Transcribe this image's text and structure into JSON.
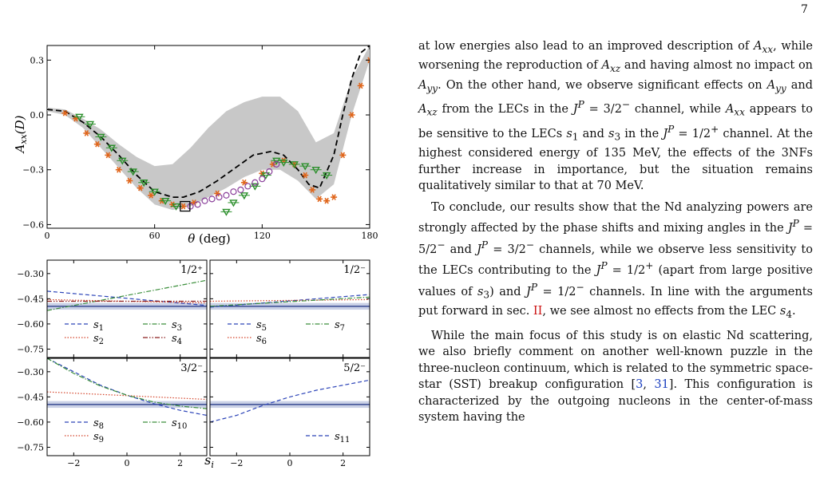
{
  "page_number": "7",
  "chart_data": [
    {
      "type": "line",
      "panel": "main",
      "xlabel": "θ (deg)",
      "ylabel": "Axx(D)",
      "xlim": [
        0,
        180
      ],
      "ylim": [
        -0.62,
        0.38
      ],
      "xticks": [
        0,
        60,
        120,
        180
      ],
      "yticks": [
        -0.6,
        -0.3,
        0.0,
        0.3
      ],
      "series": [
        {
          "style": "dashed black",
          "x": [
            0,
            10,
            20,
            30,
            40,
            50,
            60,
            70,
            76,
            85,
            95,
            105,
            115,
            125,
            132,
            140,
            146,
            152,
            160,
            165,
            170,
            175,
            180
          ],
          "y": [
            0.03,
            0.02,
            -0.04,
            -0.12,
            -0.22,
            -0.33,
            -0.42,
            -0.45,
            -0.45,
            -0.42,
            -0.36,
            -0.29,
            -0.22,
            -0.2,
            -0.22,
            -0.3,
            -0.38,
            -0.4,
            -0.22,
            0.0,
            0.2,
            0.34,
            0.38
          ]
        },
        {
          "style": "gray band",
          "x": [
            0,
            10,
            20,
            30,
            40,
            50,
            60,
            70,
            80,
            90,
            100,
            110,
            120,
            130,
            140,
            150,
            160,
            170,
            180
          ],
          "upper": [
            0.04,
            0.03,
            -0.02,
            -0.08,
            -0.16,
            -0.23,
            -0.28,
            -0.27,
            -0.18,
            -0.07,
            0.02,
            0.07,
            0.1,
            0.1,
            0.02,
            -0.15,
            -0.1,
            0.2,
            0.38
          ],
          "lower": [
            0.02,
            0.0,
            -0.07,
            -0.18,
            -0.29,
            -0.4,
            -0.49,
            -0.52,
            -0.5,
            -0.45,
            -0.4,
            -0.34,
            -0.3,
            -0.3,
            -0.36,
            -0.46,
            -0.38,
            0.0,
            0.3
          ]
        },
        {
          "style": "orange asterisk",
          "x": [
            10,
            16,
            22,
            28,
            34,
            40,
            46,
            52,
            58,
            64,
            70,
            76,
            82,
            95,
            110,
            120,
            126,
            132,
            138,
            144,
            148,
            152,
            156,
            160,
            165,
            170,
            175,
            180
          ],
          "y": [
            0.01,
            -0.02,
            -0.1,
            -0.16,
            -0.22,
            -0.3,
            -0.36,
            -0.4,
            -0.44,
            -0.47,
            -0.49,
            -0.5,
            -0.48,
            -0.43,
            -0.37,
            -0.32,
            -0.27,
            -0.25,
            -0.27,
            -0.33,
            -0.41,
            -0.46,
            -0.47,
            -0.45,
            -0.22,
            0.0,
            0.16,
            0.3
          ]
        },
        {
          "style": "green triangle",
          "x": [
            18,
            24,
            30,
            36,
            42,
            48,
            54,
            60,
            66,
            72,
            100,
            104,
            110,
            116,
            122,
            128,
            132,
            138,
            144,
            150,
            156
          ],
          "y": [
            -0.01,
            -0.05,
            -0.12,
            -0.18,
            -0.25,
            -0.31,
            -0.37,
            -0.42,
            -0.47,
            -0.5,
            -0.53,
            -0.48,
            -0.44,
            -0.39,
            -0.33,
            -0.25,
            -0.26,
            -0.27,
            -0.28,
            -0.3,
            -0.33
          ]
        },
        {
          "style": "purple circle",
          "x": [
            80,
            84,
            88,
            92,
            96,
            100,
            104,
            108,
            112,
            116,
            120,
            124,
            128
          ],
          "y": [
            -0.5,
            -0.49,
            -0.47,
            -0.46,
            -0.45,
            -0.44,
            -0.42,
            -0.41,
            -0.39,
            -0.37,
            -0.35,
            -0.31,
            -0.27
          ]
        },
        {
          "style": "black open square",
          "x": [
            77
          ],
          "y": [
            -0.5
          ]
        }
      ]
    },
    {
      "type": "line",
      "panel": "1/2+",
      "label": "1/2⁺",
      "xlim": [
        -3,
        3
      ],
      "ylim": [
        -0.8,
        -0.22
      ],
      "yticks": [
        -0.3,
        -0.45,
        -0.6,
        -0.75
      ],
      "band": [
        -0.515,
        -0.475
      ],
      "series": [
        {
          "name": "s1",
          "style": "dashed blue",
          "x": [
            -3,
            3
          ],
          "y": [
            -0.405,
            -0.49
          ]
        },
        {
          "name": "s2",
          "style": "dotted red",
          "x": [
            -3,
            3
          ],
          "y": [
            -0.455,
            -0.475
          ]
        },
        {
          "name": "s3",
          "style": "dash-dot green",
          "x": [
            -3,
            3
          ],
          "y": [
            -0.52,
            -0.34
          ]
        },
        {
          "name": "s4",
          "style": "dash-dot-dot red",
          "x": [
            -3,
            3
          ],
          "y": [
            -0.465,
            -0.465
          ]
        }
      ]
    },
    {
      "type": "line",
      "panel": "1/2-",
      "label": "1/2⁻",
      "xlim": [
        -3,
        3
      ],
      "ylim": [
        -0.8,
        -0.22
      ],
      "band": [
        -0.515,
        -0.475
      ],
      "series": [
        {
          "name": "s5",
          "style": "dashed blue",
          "x": [
            -3,
            3
          ],
          "y": [
            -0.5,
            -0.425
          ]
        },
        {
          "name": "s6",
          "style": "dotted red",
          "x": [
            -3,
            3
          ],
          "y": [
            -0.465,
            -0.455
          ]
        },
        {
          "name": "s7",
          "style": "dash-dot green",
          "x": [
            -3,
            3
          ],
          "y": [
            -0.495,
            -0.44
          ]
        }
      ]
    },
    {
      "type": "line",
      "panel": "3/2-",
      "label": "3/2⁻",
      "xlim": [
        -3,
        3
      ],
      "ylim": [
        -0.8,
        -0.22
      ],
      "xticks": [
        -2,
        0,
        2
      ],
      "yticks": [
        -0.3,
        -0.45,
        -0.6,
        -0.75
      ],
      "band": [
        -0.515,
        -0.475
      ],
      "series": [
        {
          "name": "s8",
          "style": "dashed blue",
          "x": [
            -3,
            -2,
            -1,
            0,
            1,
            2,
            3
          ],
          "y": [
            -0.22,
            -0.3,
            -0.38,
            -0.44,
            -0.49,
            -0.53,
            -0.56
          ]
        },
        {
          "name": "s9",
          "style": "dotted red",
          "x": [
            -3,
            3
          ],
          "y": [
            -0.42,
            -0.465
          ]
        },
        {
          "name": "s10",
          "style": "dash-dot green",
          "x": [
            -3,
            -2,
            -1,
            0,
            1,
            2,
            3
          ],
          "y": [
            -0.22,
            -0.31,
            -0.385,
            -0.44,
            -0.48,
            -0.505,
            -0.52
          ]
        }
      ]
    },
    {
      "type": "line",
      "panel": "5/2-",
      "label": "5/2⁻",
      "xlim": [
        -3,
        3
      ],
      "ylim": [
        -0.8,
        -0.22
      ],
      "xticks": [
        -2,
        0,
        2
      ],
      "band": [
        -0.515,
        -0.475
      ],
      "series": [
        {
          "name": "s11",
          "style": "dashed blue",
          "x": [
            -3,
            -2,
            -1,
            0,
            1,
            2,
            3
          ],
          "y": [
            -0.6,
            -0.56,
            -0.5,
            -0.45,
            -0.41,
            -0.38,
            -0.35
          ]
        }
      ]
    }
  ],
  "shared_xlabel": "si",
  "body": {
    "p1": "at low energies also lead to an improved description of Axx, while worsening the reproduction of Axz and having almost no impact on Ayy. On the other hand, we observe significant effects on Ayy and Axz from the LECs in the JP = 3/2− channel, while Axx appears to be sensitive to the LECs s1 and s3 in the JP = 1/2+ channel. At the highest considered energy of 135 MeV, the effects of the 3NFs further increase in importance, but the situation remains qualitatively similar to that at 70 MeV.",
    "p2": "To conclude, our results show that the Nd analyzing powers are strongly affected by the phase shifts and mixing angles in the JP = 5/2− and JP = 3/2− channels, while we observe less sensitivity to the LECs contributing to the JP = 1/2+ (apart from large positive values of s3) and JP = 1/2− channels. In line with the arguments put forward in sec. II, we see almost no effects from the LEC s4.",
    "p3": "While the main focus of this study is on elastic Nd scattering, we also briefly comment on another well-known puzzle in the three-nucleon continuum, which is related to the symmetric space-star (SST) breakup configuration [3, 31]. This configuration is characterized by the outgoing nucleons in the center-of-mass system having the"
  }
}
